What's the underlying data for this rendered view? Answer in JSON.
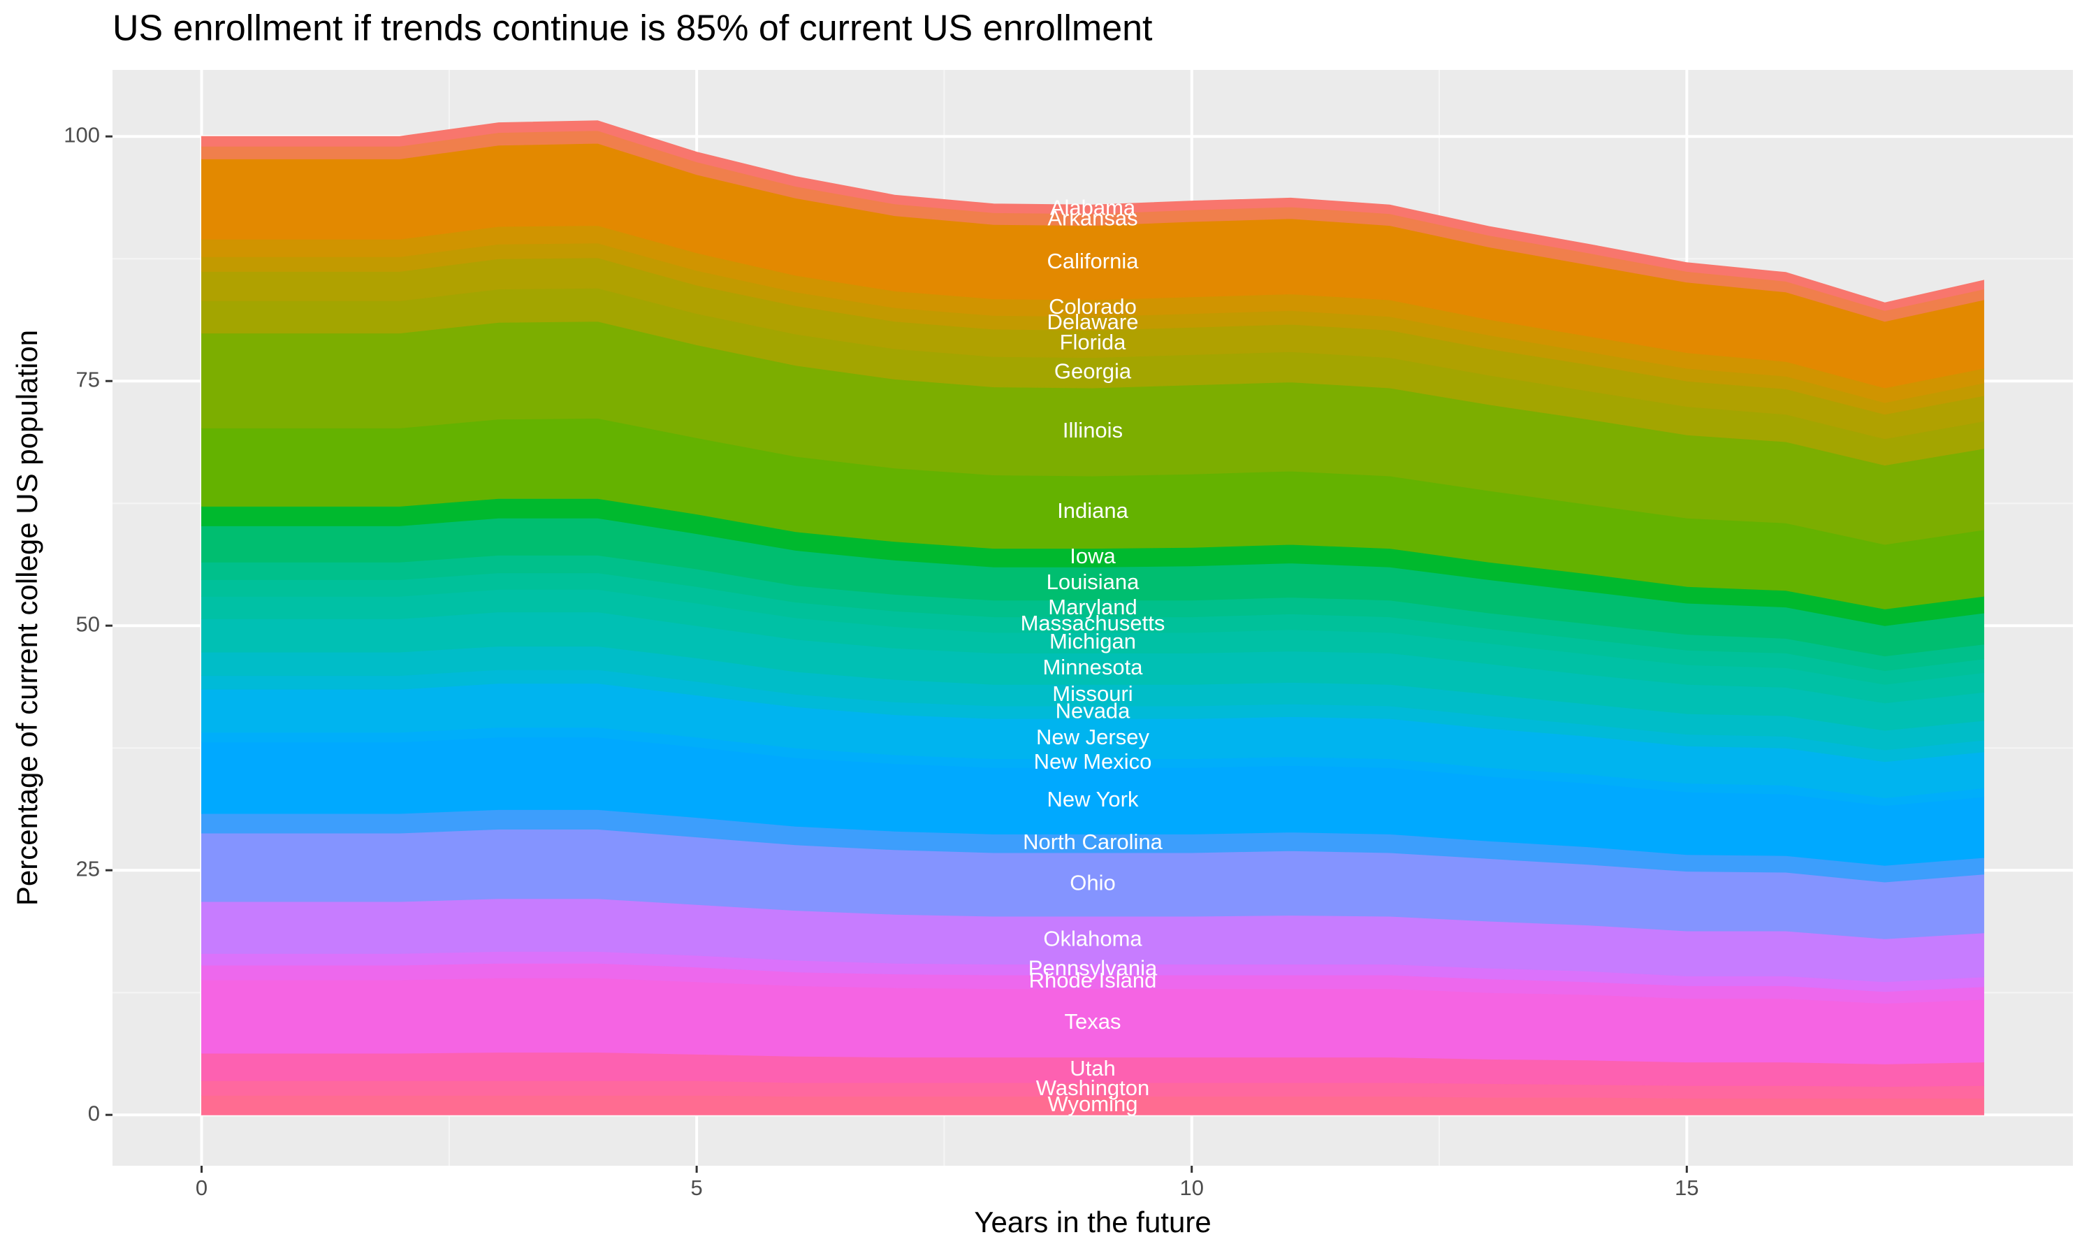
{
  "chart_data": {
    "type": "stacked_area",
    "title": "US enrollment if trends continue is 85% of current US enrollment",
    "x_label": "Years in the future",
    "y_label": "Percentage of current college US population",
    "x": [
      0,
      1,
      2,
      3,
      4,
      5,
      6,
      7,
      8,
      9,
      10,
      11,
      12,
      13,
      14,
      15,
      16,
      17,
      18
    ],
    "xlim": [
      -0.9,
      18.9
    ],
    "xticks": [
      0,
      5,
      10,
      15
    ],
    "ylim": [
      -5.2,
      106.8
    ],
    "yticks": [
      0,
      25,
      50,
      75,
      100
    ],
    "grid": true,
    "series": [
      {
        "name": "Wyoming",
        "color": "#ff6c91",
        "values": [
          2.0,
          2.0,
          2.0,
          2.0,
          2.0,
          2.0,
          1.9,
          1.9,
          1.9,
          1.9,
          1.9,
          1.9,
          1.9,
          1.8,
          1.8,
          1.7,
          1.7,
          1.7,
          1.7
        ]
      },
      {
        "name": "Washington",
        "color": "#ff689f",
        "values": [
          1.5,
          1.5,
          1.5,
          1.5,
          1.5,
          1.5,
          1.4,
          1.4,
          1.4,
          1.4,
          1.4,
          1.4,
          1.4,
          1.4,
          1.3,
          1.3,
          1.3,
          1.2,
          1.3
        ]
      },
      {
        "name": "Utah",
        "color": "#fd61b1",
        "values": [
          2.8,
          2.8,
          2.8,
          2.9,
          2.9,
          2.7,
          2.7,
          2.6,
          2.6,
          2.6,
          2.6,
          2.6,
          2.6,
          2.5,
          2.5,
          2.4,
          2.4,
          2.3,
          2.4
        ]
      },
      {
        "name": "Texas",
        "color": "#f564e3",
        "values": [
          7.5,
          7.5,
          7.5,
          7.6,
          7.6,
          7.4,
          7.2,
          7.1,
          7.0,
          7.0,
          7.0,
          7.0,
          7.0,
          6.8,
          6.7,
          6.5,
          6.5,
          6.2,
          6.4
        ]
      },
      {
        "name": "Rhode Island",
        "color": "#ed68ed",
        "values": [
          1.5,
          1.5,
          1.5,
          1.5,
          1.5,
          1.5,
          1.4,
          1.4,
          1.4,
          1.4,
          1.4,
          1.4,
          1.4,
          1.4,
          1.3,
          1.3,
          1.3,
          1.2,
          1.3
        ]
      },
      {
        "name": "Pennsylvania",
        "color": "#db72fb",
        "values": [
          1.2,
          1.2,
          1.2,
          1.2,
          1.2,
          1.2,
          1.2,
          1.1,
          1.1,
          1.1,
          1.1,
          1.1,
          1.1,
          1.1,
          1.1,
          1.0,
          1.0,
          1.0,
          1.0
        ]
      },
      {
        "name": "Oklahoma",
        "color": "#c77cff",
        "values": [
          5.3,
          5.3,
          5.3,
          5.4,
          5.4,
          5.2,
          5.1,
          5.0,
          4.9,
          4.9,
          4.9,
          5.0,
          4.9,
          4.8,
          4.7,
          4.6,
          4.6,
          4.4,
          4.5
        ]
      },
      {
        "name": "Ohio",
        "color": "#8494ff",
        "values": [
          7.0,
          7.0,
          7.0,
          7.1,
          7.1,
          6.9,
          6.7,
          6.6,
          6.5,
          6.5,
          6.5,
          6.6,
          6.5,
          6.4,
          6.2,
          6.1,
          6.0,
          5.8,
          6.0
        ]
      },
      {
        "name": "North Carolina",
        "color": "#3d9efc",
        "values": [
          2.0,
          2.0,
          2.0,
          2.0,
          2.0,
          2.0,
          1.9,
          1.9,
          1.9,
          1.9,
          1.9,
          1.9,
          1.9,
          1.8,
          1.8,
          1.7,
          1.7,
          1.7,
          1.7
        ]
      },
      {
        "name": "New York",
        "color": "#00a9ff",
        "values": [
          7.3,
          7.3,
          7.3,
          7.4,
          7.4,
          7.2,
          7.0,
          6.9,
          6.8,
          6.8,
          6.8,
          6.8,
          6.8,
          6.6,
          6.5,
          6.4,
          6.3,
          6.1,
          6.2
        ]
      },
      {
        "name": "New Mexico",
        "color": "#00aefa",
        "values": [
          1.0,
          1.0,
          1.0,
          1.0,
          1.0,
          1.0,
          1.0,
          0.9,
          0.9,
          0.9,
          0.9,
          0.9,
          0.9,
          0.9,
          0.9,
          0.9,
          0.9,
          0.8,
          0.9
        ]
      },
      {
        "name": "New Jersey",
        "color": "#00b4ef",
        "values": [
          4.4,
          4.4,
          4.4,
          4.5,
          4.5,
          4.3,
          4.2,
          4.1,
          4.1,
          4.1,
          4.1,
          4.1,
          4.1,
          4.0,
          3.9,
          3.8,
          3.8,
          3.7,
          3.7
        ]
      },
      {
        "name": "Nevada",
        "color": "#00bad8",
        "values": [
          1.4,
          1.4,
          1.4,
          1.4,
          1.4,
          1.4,
          1.3,
          1.3,
          1.3,
          1.3,
          1.3,
          1.3,
          1.3,
          1.3,
          1.2,
          1.2,
          1.2,
          1.2,
          1.2
        ]
      },
      {
        "name": "Missouri",
        "color": "#00bdc8",
        "values": [
          2.4,
          2.4,
          2.4,
          2.4,
          2.4,
          2.4,
          2.3,
          2.3,
          2.2,
          2.2,
          2.2,
          2.2,
          2.2,
          2.2,
          2.1,
          2.1,
          2.1,
          2.0,
          2.0
        ]
      },
      {
        "name": "Minnesota",
        "color": "#00c0b4",
        "values": [
          3.4,
          3.4,
          3.4,
          3.5,
          3.5,
          3.3,
          3.3,
          3.2,
          3.2,
          3.2,
          3.2,
          3.2,
          3.2,
          3.1,
          3.0,
          3.0,
          2.9,
          2.8,
          2.9
        ]
      },
      {
        "name": "Michigan",
        "color": "#00c1a5",
        "values": [
          2.3,
          2.3,
          2.3,
          2.3,
          2.3,
          2.3,
          2.2,
          2.2,
          2.1,
          2.1,
          2.1,
          2.2,
          2.1,
          2.1,
          2.1,
          2.0,
          2.0,
          1.9,
          2.0
        ]
      },
      {
        "name": "Massachusetts",
        "color": "#00c19a",
        "values": [
          1.7,
          1.7,
          1.7,
          1.7,
          1.7,
          1.7,
          1.6,
          1.6,
          1.6,
          1.6,
          1.6,
          1.6,
          1.6,
          1.5,
          1.5,
          1.5,
          1.5,
          1.4,
          1.4
        ]
      },
      {
        "name": "Maryland",
        "color": "#00c08b",
        "values": [
          1.8,
          1.8,
          1.8,
          1.8,
          1.8,
          1.8,
          1.7,
          1.7,
          1.7,
          1.7,
          1.7,
          1.7,
          1.7,
          1.6,
          1.6,
          1.6,
          1.5,
          1.5,
          1.5
        ]
      },
      {
        "name": "Louisiana",
        "color": "#00be70",
        "values": [
          3.7,
          3.7,
          3.7,
          3.8,
          3.8,
          3.6,
          3.6,
          3.5,
          3.4,
          3.4,
          3.5,
          3.5,
          3.4,
          3.4,
          3.3,
          3.2,
          3.2,
          3.1,
          3.2
        ]
      },
      {
        "name": "Iowa",
        "color": "#00b92e",
        "values": [
          2.0,
          2.0,
          2.0,
          2.0,
          2.0,
          2.0,
          1.9,
          1.9,
          1.9,
          1.9,
          1.9,
          1.9,
          1.9,
          1.8,
          1.8,
          1.7,
          1.7,
          1.7,
          1.7
        ]
      },
      {
        "name": "Indiana",
        "color": "#64b200",
        "values": [
          8.0,
          8.0,
          8.0,
          8.1,
          8.2,
          7.8,
          7.7,
          7.5,
          7.5,
          7.4,
          7.5,
          7.5,
          7.4,
          7.3,
          7.1,
          7.0,
          6.9,
          6.6,
          6.8
        ]
      },
      {
        "name": "Illinois",
        "color": "#7cae00",
        "values": [
          9.7,
          9.7,
          9.7,
          9.9,
          9.9,
          9.5,
          9.3,
          9.1,
          9.0,
          9.0,
          9.1,
          9.1,
          9.0,
          8.8,
          8.7,
          8.5,
          8.3,
          8.1,
          8.3
        ]
      },
      {
        "name": "Georgia",
        "color": "#a3a500",
        "values": [
          3.3,
          3.3,
          3.3,
          3.4,
          3.4,
          3.2,
          3.2,
          3.1,
          3.1,
          3.1,
          3.1,
          3.1,
          3.1,
          3.0,
          2.9,
          2.9,
          2.8,
          2.7,
          2.8
        ]
      },
      {
        "name": "Florida",
        "color": "#b0a100",
        "values": [
          3.0,
          3.0,
          3.0,
          3.1,
          3.1,
          2.9,
          2.9,
          2.8,
          2.8,
          2.8,
          2.8,
          2.8,
          2.8,
          2.7,
          2.7,
          2.6,
          2.6,
          2.5,
          2.6
        ]
      },
      {
        "name": "Delaware",
        "color": "#c29a00",
        "values": [
          1.5,
          1.5,
          1.5,
          1.5,
          1.5,
          1.5,
          1.4,
          1.4,
          1.4,
          1.4,
          1.4,
          1.4,
          1.4,
          1.4,
          1.3,
          1.3,
          1.3,
          1.2,
          1.3
        ]
      },
      {
        "name": "Colorado",
        "color": "#d09400",
        "values": [
          1.8,
          1.8,
          1.8,
          1.8,
          1.8,
          1.8,
          1.7,
          1.7,
          1.7,
          1.7,
          1.7,
          1.7,
          1.7,
          1.6,
          1.6,
          1.6,
          1.5,
          1.5,
          1.5
        ]
      },
      {
        "name": "California",
        "color": "#e38900",
        "values": [
          8.2,
          8.2,
          8.2,
          8.3,
          8.4,
          8.0,
          7.9,
          7.7,
          7.6,
          7.6,
          7.7,
          7.7,
          7.6,
          7.4,
          7.3,
          7.2,
          7.1,
          6.8,
          7.0
        ]
      },
      {
        "name": "Arkansas",
        "color": "#f07f4c",
        "values": [
          1.3,
          1.3,
          1.3,
          1.3,
          1.3,
          1.3,
          1.2,
          1.2,
          1.2,
          1.2,
          1.2,
          1.2,
          1.2,
          1.2,
          1.2,
          1.1,
          1.1,
          1.1,
          1.1
        ]
      },
      {
        "name": "Alabama",
        "color": "#f8766d",
        "values": [
          1.0,
          1.0,
          1.0,
          1.0,
          1.0,
          1.0,
          1.0,
          0.9,
          0.9,
          0.9,
          0.9,
          0.9,
          0.9,
          0.9,
          0.9,
          0.9,
          0.9,
          0.8,
          0.9
        ]
      }
    ]
  }
}
